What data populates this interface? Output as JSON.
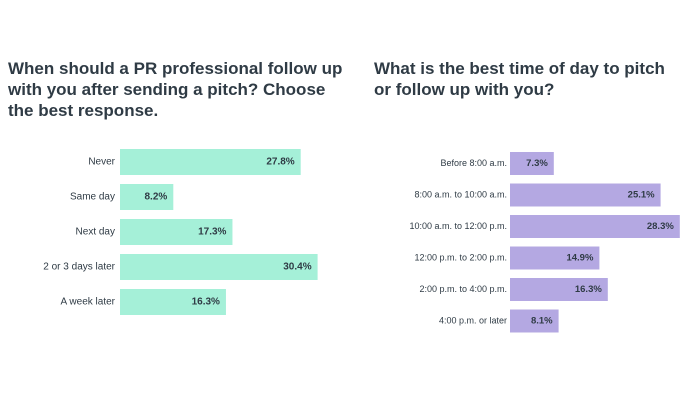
{
  "charts": {
    "left": {
      "title": "When should a PR professional follow up with you after sending a pitch? Choose the best response."
    },
    "right": {
      "title": "What is the best time of day to pitch or follow up with you?"
    }
  },
  "chart_data": [
    {
      "type": "bar",
      "orientation": "horizontal",
      "title": "When should a PR professional follow up with you after sending a pitch? Choose the best response.",
      "categories": [
        "Never",
        "Same day",
        "Next day",
        "2 or 3 days later",
        "A week later"
      ],
      "values": [
        27.8,
        8.2,
        17.3,
        30.4,
        16.3
      ],
      "value_labels": [
        "27.8%",
        "8.2%",
        "17.3%",
        "30.4%",
        "16.3%"
      ],
      "bar_color": "#a5f0d8",
      "xlabel": "",
      "ylabel": "",
      "grid": false
    },
    {
      "type": "bar",
      "orientation": "horizontal",
      "title": "What is the best time of day to pitch or follow up with you?",
      "categories": [
        "Before 8:00 a.m.",
        "8:00 a.m. to 10:00 a.m.",
        "10:00 a.m. to 12:00 p.m.",
        "12:00 p.m. to 2:00 p.m.",
        "2:00 p.m. to 4:00 p.m.",
        "4:00 p.m. or later"
      ],
      "values": [
        7.3,
        25.1,
        28.3,
        14.9,
        16.3,
        8.1
      ],
      "value_labels": [
        "7.3%",
        "25.1%",
        "28.3%",
        "14.9%",
        "16.3%",
        "8.1%"
      ],
      "bar_color": "#b4a8e2",
      "xlabel": "",
      "ylabel": "",
      "grid": false
    }
  ]
}
